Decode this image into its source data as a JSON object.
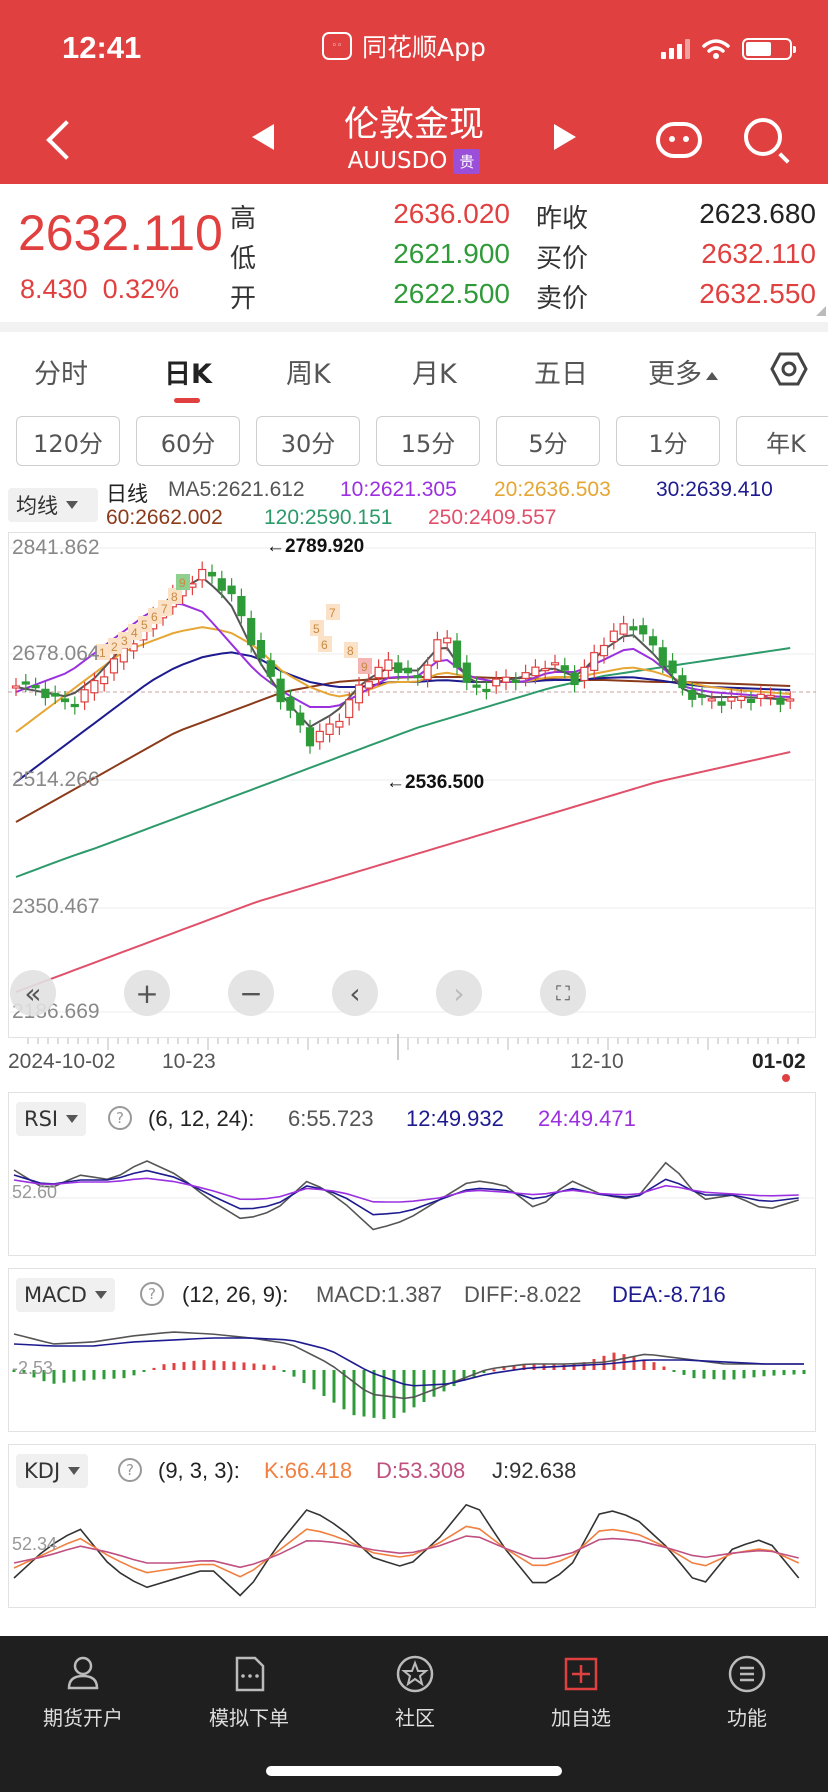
{
  "status_bar": {
    "time": "12:41",
    "source_app": "同花顺App"
  },
  "header": {
    "title": "伦敦金现",
    "symbol": "AUUSDO",
    "tag": "贵"
  },
  "quote": {
    "price": "2632.110",
    "change": "8.430",
    "change_pct": "0.32%",
    "labels": {
      "high": "高",
      "low": "低",
      "open": "开",
      "prev_close": "昨收",
      "bid": "买价",
      "ask": "卖价"
    },
    "high": "2636.020",
    "low": "2621.900",
    "open": "2622.500",
    "prev_close": "2623.680",
    "bid": "2632.110",
    "ask": "2632.550"
  },
  "period_tabs": [
    "分时",
    "日K",
    "周K",
    "月K",
    "五日",
    "更多"
  ],
  "active_period": "日K",
  "interval_buttons": [
    "120分",
    "60分",
    "30分",
    "15分",
    "5分",
    "1分",
    "年K"
  ],
  "ma_legend": {
    "selector": "均线",
    "label": "日线",
    "ma5": "MA5:2621.612",
    "ma10": "10:2621.305",
    "ma20": "20:2636.503",
    "ma30": "30:2639.410",
    "ma60": "60:2662.002",
    "ma120": "120:2590.151",
    "ma250": "250:2409.557"
  },
  "price_chart": {
    "y_ticks": [
      "2841.862",
      "2678.064",
      "2514.266",
      "2350.467",
      "2186.669"
    ],
    "x_ticks": [
      "2024-10-02",
      "10-23",
      "12-10",
      "01-02"
    ],
    "high_annotation": "←2789.920",
    "low_annotation": "←2536.500",
    "td_counts": [
      "1",
      "2",
      "3",
      "4",
      "5",
      "6",
      "7",
      "8",
      "9",
      "5",
      "6",
      "7",
      "8",
      "9"
    ]
  },
  "rsi": {
    "name": "RSI",
    "params": "(6, 12, 24):",
    "rsi6": "6:55.723",
    "rsi12": "12:49.932",
    "rsi24": "24:49.471",
    "level": "52.60"
  },
  "macd": {
    "name": "MACD",
    "params": "(12, 26, 9):",
    "macd": "MACD:1.387",
    "diff": "DIFF:-8.022",
    "dea": "DEA:-8.716",
    "level": "-2.53"
  },
  "kdj": {
    "name": "KDJ",
    "params": "(9, 3, 3):",
    "k": "K:66.418",
    "d": "D:53.308",
    "j": "J:92.638",
    "level": "52.34"
  },
  "bottom_nav": [
    "期货开户",
    "模拟下单",
    "社区",
    "加自选",
    "功能"
  ],
  "colors": {
    "brand_red": "#e0403f",
    "up": "#e0403f",
    "down": "#2f9a38",
    "ma5": "#555555",
    "ma10": "#9b30e0",
    "ma20": "#e5a633",
    "ma30": "#1d1b8f",
    "ma60": "#8b3a1a",
    "ma120": "#2d9a6a",
    "ma250": "#e0506a"
  },
  "icons": [
    "back-icon",
    "prev-icon",
    "next-icon",
    "robot-icon",
    "search-icon",
    "settings-icon",
    "collapse-icon",
    "zoom-in-icon",
    "zoom-out-icon",
    "scroll-left-icon",
    "scroll-right-icon",
    "fullscreen-icon",
    "help-icon",
    "account-icon",
    "order-icon",
    "community-icon",
    "add-watch-icon",
    "menu-icon"
  ]
}
